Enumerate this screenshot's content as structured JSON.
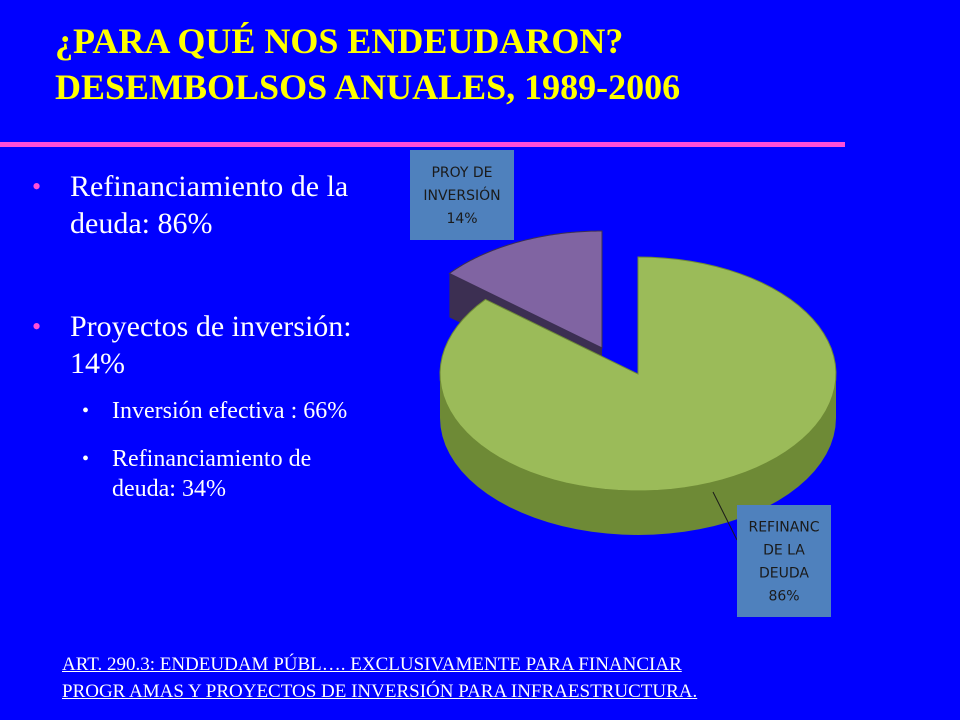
{
  "title": {
    "line1": "¿PARA QUÉ NOS ENDEUDARON?",
    "line2": "DESEMBOLSOS ANUALES, 1989-2006"
  },
  "bullets": [
    {
      "text": "Refinanciamiento de la deuda: 86%"
    },
    {
      "text": "Proyectos de inversión: 14%"
    }
  ],
  "sub_bullets": [
    {
      "text": "Inversión efectiva : 66%"
    },
    {
      "text": "Refinanciamiento de deuda: 34%"
    }
  ],
  "footnote": {
    "line1": "ART. 290.3: ENDEUDAM PÚBL…. EXCLUSIVAMENTE PARA FINANCIAR",
    "line2": "PROGR AMAS Y PROYECTOS DE INVERSIÓN PARA INFRAESTRUCTURA",
    "tail": "."
  },
  "colors": {
    "background": "#0000FF",
    "title": "#FFFF00",
    "rule": "#FF4FD8",
    "bullet_text": "#FFFFFF"
  },
  "chart_data": {
    "type": "pie",
    "style": "3d-exploded",
    "slices": [
      {
        "label_lines": [
          "PROY DE",
          "INVERSIÓN",
          "14%"
        ],
        "value": 14,
        "color": "#8064A2",
        "side_color": "#3C2F52"
      },
      {
        "label_lines": [
          "REFINANC",
          "DE LA",
          "DEUDA",
          "86%"
        ],
        "value": 86,
        "color": "#9BBB59",
        "side_color": "#6E8A36"
      }
    ]
  }
}
